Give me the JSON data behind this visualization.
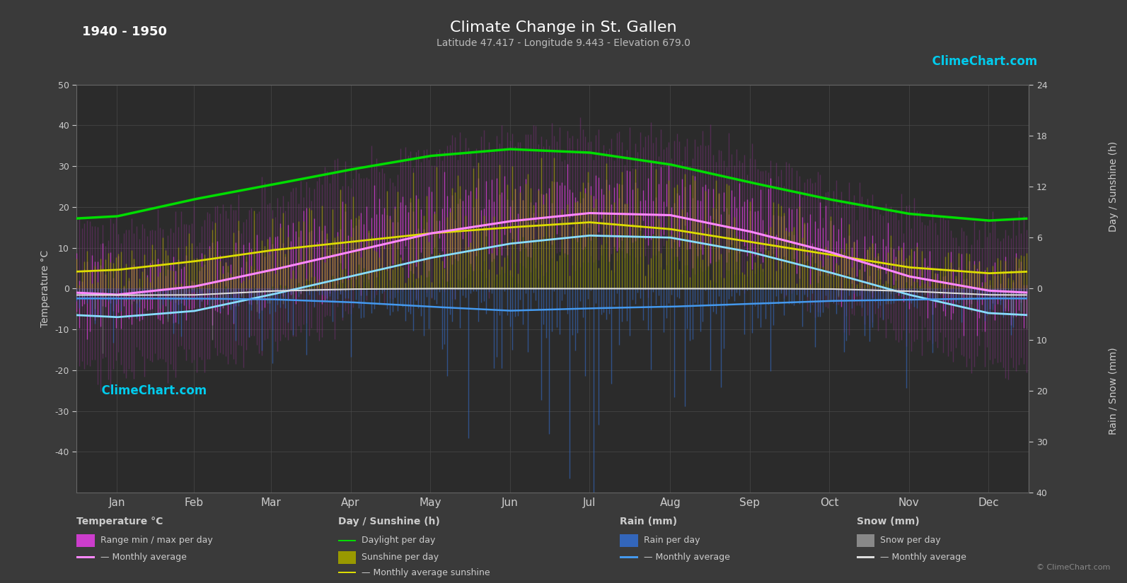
{
  "title": "Climate Change in St. Gallen",
  "subtitle": "Latitude 47.417 - Longitude 9.443 - Elevation 679.0",
  "year_range": "1940 - 1950",
  "bg_color": "#3a3a3a",
  "plot_bg_color": "#2b2b2b",
  "months": [
    "Jan",
    "Feb",
    "Mar",
    "Apr",
    "May",
    "Jun",
    "Jul",
    "Aug",
    "Sep",
    "Oct",
    "Nov",
    "Dec"
  ],
  "days_per_month": [
    31,
    28,
    31,
    30,
    31,
    30,
    31,
    31,
    30,
    31,
    30,
    31
  ],
  "temp_avg_monthly": [
    -1.5,
    0.5,
    4.5,
    9.0,
    13.5,
    16.5,
    18.5,
    18.0,
    14.0,
    9.0,
    3.0,
    -0.5
  ],
  "temp_min_monthly": [
    -7.0,
    -5.5,
    -1.5,
    3.0,
    7.5,
    11.0,
    13.0,
    12.5,
    9.0,
    4.0,
    -1.5,
    -6.0
  ],
  "temp_max_monthly": [
    4.0,
    6.0,
    11.5,
    16.0,
    21.0,
    23.0,
    25.0,
    25.0,
    21.0,
    15.0,
    7.0,
    4.5
  ],
  "temp_abs_min_monthly": [
    -20,
    -18,
    -13,
    -4,
    1,
    5,
    7,
    7,
    2,
    -4,
    -12,
    -18
  ],
  "temp_abs_max_monthly": [
    14,
    16,
    22,
    28,
    33,
    36,
    37,
    36,
    31,
    24,
    17,
    13
  ],
  "daylight_monthly": [
    8.5,
    10.5,
    12.2,
    14.0,
    15.6,
    16.4,
    16.0,
    14.6,
    12.5,
    10.5,
    8.8,
    8.0
  ],
  "sunshine_monthly": [
    2.2,
    3.2,
    4.5,
    5.5,
    6.5,
    7.2,
    7.8,
    7.0,
    5.5,
    4.0,
    2.5,
    1.8
  ],
  "rain_mm_monthly": [
    60,
    55,
    65,
    80,
    110,
    130,
    120,
    110,
    90,
    75,
    65,
    60
  ],
  "snow_mm_monthly": [
    40,
    35,
    15,
    3,
    0,
    0,
    0,
    0,
    0,
    2,
    15,
    38
  ],
  "colors": {
    "abs_temp": "#7a307a",
    "temp_range": "#cc3dcc",
    "temp_avg": "#ff88ff",
    "temp_min_line": "#88ddff",
    "snow_avg_line": "#dddddd",
    "daylight": "#00dd00",
    "sunshine_fill": "#999900",
    "sunshine_line": "#dddd00",
    "rain_fill": "#3366bb",
    "rain_avg_line": "#4499ee",
    "snow_fill": "#888888",
    "grid": "#4a4a4a",
    "axis_text": "#cccccc",
    "title": "#ffffff",
    "bg": "#3a3a3a",
    "plot_bg": "#2b2b2b"
  }
}
